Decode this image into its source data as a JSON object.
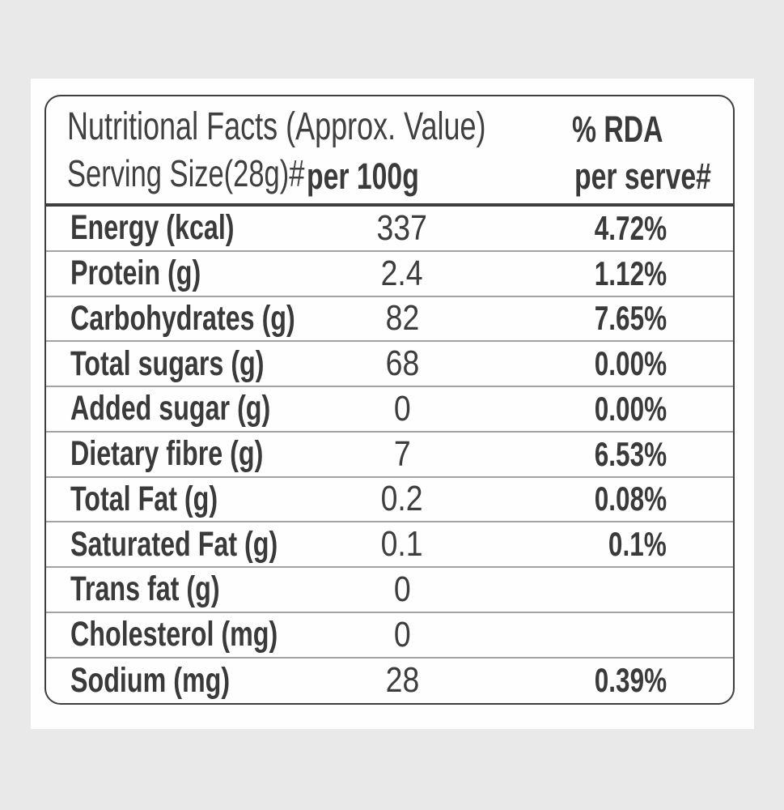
{
  "header": {
    "title": "Nutritional Facts (Approx. Value)",
    "serving_size": "Serving Size(28g)#",
    "per_100g": "per 100g",
    "rda_line1": "% RDA",
    "rda_line2": "per serve#"
  },
  "rows": [
    {
      "label": "Energy (kcal)",
      "per_100g": "337",
      "rda_per_serve": "4.72%"
    },
    {
      "label": "Protein (g)",
      "per_100g": "2.4",
      "rda_per_serve": "1.12%"
    },
    {
      "label": "Carbohydrates (g)",
      "per_100g": "82",
      "rda_per_serve": "7.65%"
    },
    {
      "label": "Total sugars (g)",
      "per_100g": "68",
      "rda_per_serve": "0.00%"
    },
    {
      "label": "Added sugar (g)",
      "per_100g": "0",
      "rda_per_serve": "0.00%"
    },
    {
      "label": "Dietary fibre (g)",
      "per_100g": "7",
      "rda_per_serve": "6.53%"
    },
    {
      "label": "Total Fat (g)",
      "per_100g": "0.2",
      "rda_per_serve": "0.08%"
    },
    {
      "label": "Saturated Fat (g)",
      "per_100g": "0.1",
      "rda_per_serve": "0.1%"
    },
    {
      "label": "Trans fat (g)",
      "per_100g": "0",
      "rda_per_serve": ""
    },
    {
      "label": "Cholesterol (mg)",
      "per_100g": "0",
      "rda_per_serve": ""
    },
    {
      "label": "Sodium (mg)",
      "per_100g": "28",
      "rda_per_serve": "0.39%"
    }
  ],
  "colors": {
    "background": "#e9e9e9",
    "panel": "#fefefe",
    "text": "#3a3a3a",
    "border_dark": "#3e3e3e",
    "separator_light": "#a2a2a2"
  }
}
